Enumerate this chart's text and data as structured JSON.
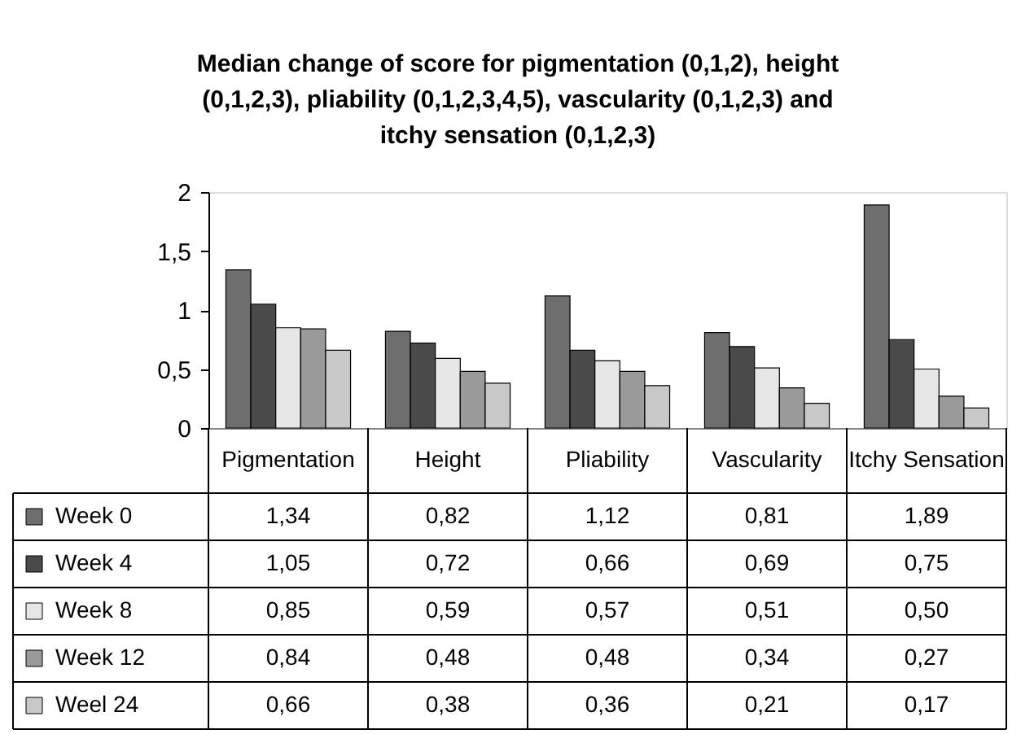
{
  "chart_data": {
    "type": "bar",
    "title": "Median change of score for pigmentation (0,1,2), height (0,1,2,3), pliability (0,1,2,3,4,5), vascularity (0,1,2,3) and itchy sensation (0,1,2,3)",
    "categories": [
      "Pigmentation",
      "Height",
      "Pliability",
      "Vascularity",
      "Itchy Sensation"
    ],
    "series": [
      {
        "name": "Week 0",
        "color": "#6e6e6e",
        "values": [
          1.34,
          0.82,
          1.12,
          0.81,
          1.89
        ],
        "value_labels": [
          "1,34",
          "0,82",
          "1,12",
          "0,81",
          "1,89"
        ]
      },
      {
        "name": "Week 4",
        "color": "#4a4a4a",
        "values": [
          1.05,
          0.72,
          0.66,
          0.69,
          0.75
        ],
        "value_labels": [
          "1,05",
          "0,72",
          "0,66",
          "0,69",
          "0,75"
        ]
      },
      {
        "name": "Week 8",
        "color": "#e6e6e6",
        "values": [
          0.85,
          0.59,
          0.57,
          0.51,
          0.5
        ],
        "value_labels": [
          "0,85",
          "0,59",
          "0,57",
          "0,51",
          "0,50"
        ]
      },
      {
        "name": "Week 12",
        "color": "#9a9a9a",
        "values": [
          0.84,
          0.48,
          0.48,
          0.34,
          0.27
        ],
        "value_labels": [
          "0,84",
          "0,48",
          "0,48",
          "0,34",
          "0,27"
        ]
      },
      {
        "name": "Weel 24",
        "color": "#c8c8c8",
        "values": [
          0.66,
          0.38,
          0.36,
          0.21,
          0.17
        ],
        "value_labels": [
          "0,66",
          "0,38",
          "0,36",
          "0,21",
          "0,17"
        ]
      }
    ],
    "ylim": [
      0,
      2
    ],
    "yticks": [
      0,
      {
        "value": 0.5,
        "label": "0,5"
      },
      1,
      {
        "value": 1.5,
        "label": "1,5"
      },
      2
    ],
    "legend": "bottom",
    "grid": false
  }
}
